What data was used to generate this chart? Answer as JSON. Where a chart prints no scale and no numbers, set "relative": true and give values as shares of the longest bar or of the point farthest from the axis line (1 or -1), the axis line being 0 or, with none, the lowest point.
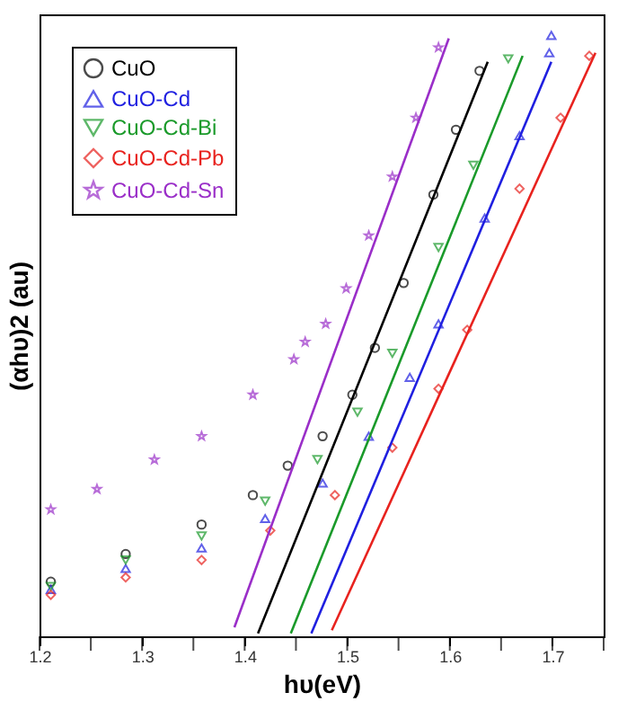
{
  "chart_data": {
    "type": "scatter",
    "xlabel": "hυ(eV)",
    "ylabel": "(αhυ)2 (au)",
    "relative": true,
    "tick_labels": "x",
    "legend": "top left",
    "grid": false,
    "xlim": [
      1.2,
      1.75
    ],
    "xticks": [
      1.2,
      {
        "value": 1.25,
        "label": null
      },
      1.3,
      {
        "value": 1.35,
        "label": null
      },
      1.4,
      {
        "value": 1.45,
        "label": null
      },
      1.5,
      {
        "value": 1.55,
        "label": null
      },
      1.6,
      {
        "value": 1.65,
        "label": null
      },
      1.7,
      {
        "value": 1.75,
        "label": null
      }
    ],
    "series": [
      {
        "name": "CuO",
        "color": "#000000",
        "marker": "circle",
        "x": [
          1.211,
          1.284,
          1.358,
          1.408,
          1.442,
          1.476,
          1.505,
          1.527,
          1.555,
          1.584,
          1.606,
          1.629
        ],
        "values": [
          0.091,
          0.137,
          0.186,
          0.235,
          0.284,
          0.333,
          0.402,
          0.48,
          0.588,
          0.735,
          0.843,
          0.941
        ]
      },
      {
        "name": "CuO-Cd",
        "color": "#1f1fe0",
        "marker": "triangle",
        "x": [
          1.211,
          1.284,
          1.358,
          1.42,
          1.476,
          1.521,
          1.561,
          1.589,
          1.634,
          1.668,
          1.697,
          1.699
        ],
        "values": [
          0.078,
          0.113,
          0.147,
          0.196,
          0.255,
          0.333,
          0.431,
          0.52,
          0.696,
          0.833,
          0.971,
          1.0
        ]
      },
      {
        "name": "CuO-Cd-Bi",
        "color": "#1a9a2a",
        "marker": "triangle-down",
        "x": [
          1.211,
          1.284,
          1.358,
          1.42,
          1.471,
          1.51,
          1.544,
          1.589,
          1.623,
          1.657
        ],
        "values": [
          0.083,
          0.127,
          0.167,
          0.225,
          0.294,
          0.373,
          0.471,
          0.647,
          0.784,
          0.961
        ]
      },
      {
        "name": "CuO-Cd-Pb",
        "color": "#e8221e",
        "marker": "diamond",
        "x": [
          1.211,
          1.284,
          1.358,
          1.425,
          1.488,
          1.544,
          1.589,
          1.617,
          1.668,
          1.708,
          1.736
        ],
        "values": [
          0.069,
          0.098,
          0.127,
          0.176,
          0.235,
          0.314,
          0.412,
          0.51,
          0.745,
          0.863,
          0.966
        ]
      },
      {
        "name": "CuO-Cd-Sn",
        "color": "#9a2ec8",
        "marker": "star",
        "x": [
          1.211,
          1.256,
          1.312,
          1.358,
          1.408,
          1.448,
          1.459,
          1.479,
          1.499,
          1.521,
          1.544,
          1.567,
          1.589
        ],
        "values": [
          0.211,
          0.245,
          0.294,
          0.333,
          0.402,
          0.461,
          0.49,
          0.52,
          0.579,
          0.667,
          0.765,
          0.863,
          0.98
        ]
      },
      {
        "type": "line",
        "color": "#000000",
        "x": [
          1.413,
          1.637
        ],
        "values": [
          0.005,
          0.956
        ]
      },
      {
        "type": "line",
        "color": "#1f1fe0",
        "x": [
          1.465,
          1.699
        ],
        "values": [
          0.005,
          0.956
        ]
      },
      {
        "type": "line",
        "color": "#1a9a2a",
        "x": [
          1.445,
          1.671
        ],
        "values": [
          0.005,
          0.966
        ]
      },
      {
        "type": "line",
        "color": "#e8221e",
        "x": [
          1.485,
          1.742
        ],
        "values": [
          0.01,
          0.971
        ]
      },
      {
        "type": "line",
        "color": "#9a2ec8",
        "x": [
          1.39,
          1.599
        ],
        "values": [
          0.015,
          0.995
        ]
      }
    ]
  }
}
